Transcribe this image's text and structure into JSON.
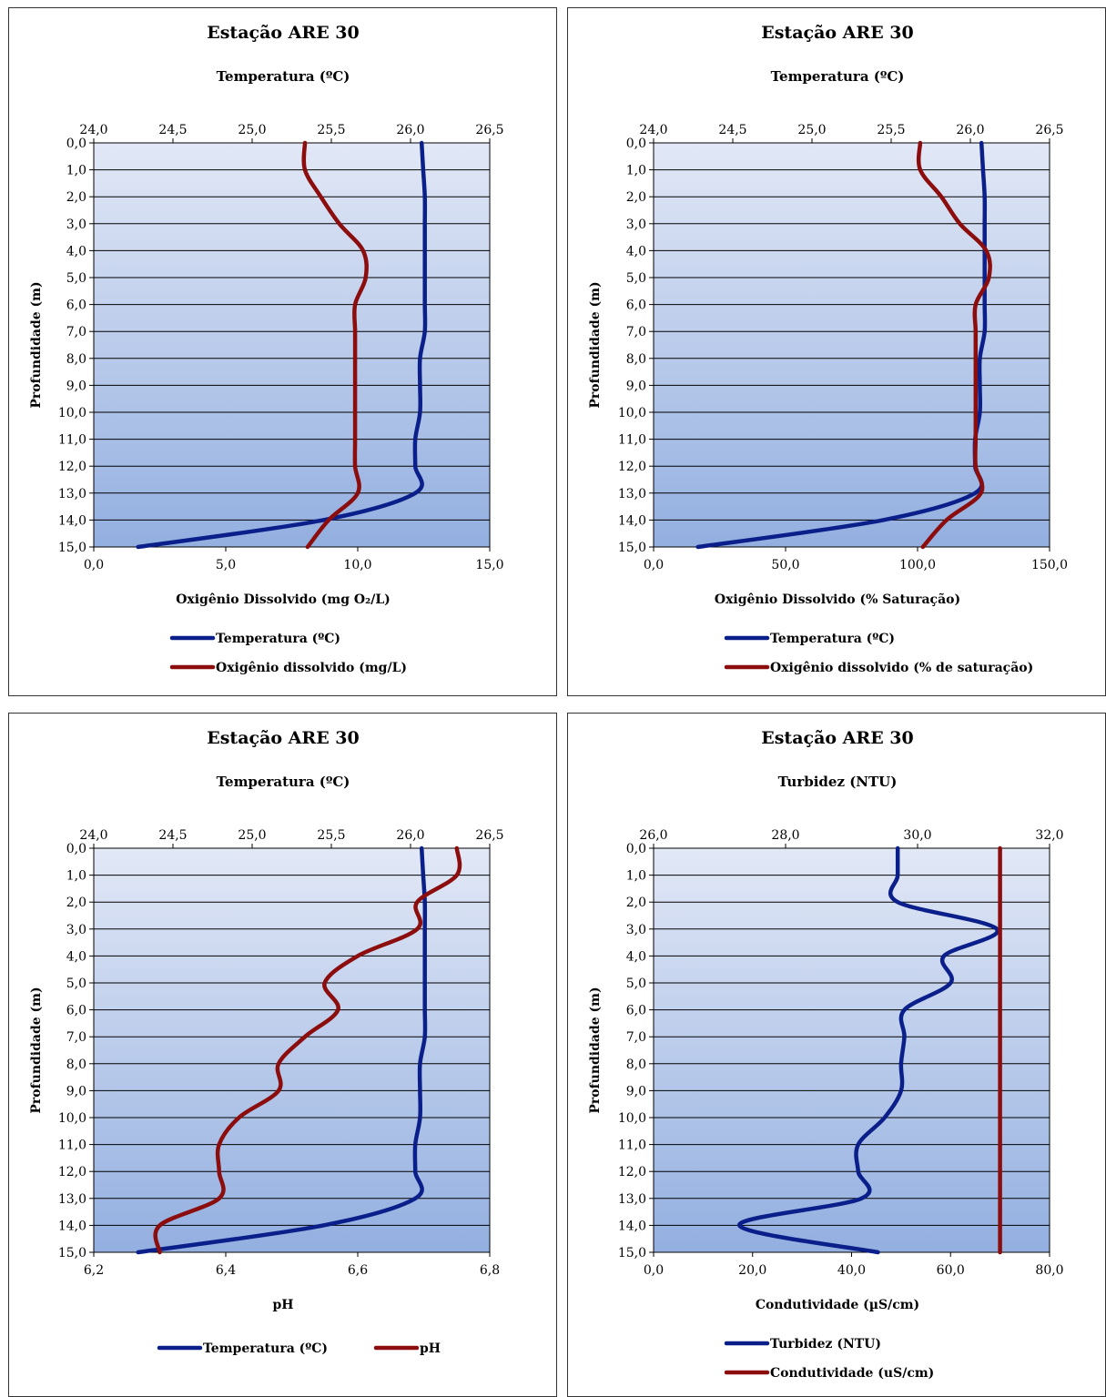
{
  "chart_data": [
    {
      "type": "line",
      "title": "Estação ARE 30",
      "top_axis_title": "Temperatura  (ºC)",
      "bottom_axis_title": "Oxigênio  Dissolvido  (mg O₂/L)",
      "ylabel": "Profundidade  (m)",
      "top_axis": {
        "ticks": [
          "24,0",
          "24,5",
          "25,0",
          "25,5",
          "26,0",
          "26,5"
        ],
        "min": 24.0,
        "max": 26.5
      },
      "bottom_axis": {
        "ticks": [
          "0,0",
          "5,0",
          "10,0",
          "15,0"
        ],
        "min": 0,
        "max": 15
      },
      "y_ticks": [
        "0,0",
        "1,0",
        "2,0",
        "3,0",
        "4,0",
        "5,0",
        "6,0",
        "7,0",
        "8,0",
        "9,0",
        "10,0",
        "11,0",
        "12,0",
        "13,0",
        "14,0",
        "15,0"
      ],
      "ylim": [
        0,
        15
      ],
      "legend_layout": "stacked",
      "series": [
        {
          "name": "Temperatura (ºC)",
          "axis": "top",
          "color": "#0b1f8a",
          "depths": [
            0,
            1,
            2,
            3,
            4,
            5,
            6,
            7,
            8,
            9,
            10,
            11,
            12,
            13,
            14,
            15
          ],
          "values": [
            26.07,
            26.08,
            26.09,
            26.09,
            26.09,
            26.09,
            26.09,
            26.09,
            26.06,
            26.06,
            26.06,
            26.03,
            26.03,
            26.03,
            25.45,
            24.28
          ]
        },
        {
          "name": "Oxigênio dissolvido (mg/L)",
          "axis": "bottom",
          "color": "#8b0d0d",
          "depths": [
            0,
            1,
            2,
            3,
            4,
            5,
            6,
            7,
            8,
            9,
            10,
            11,
            12,
            13,
            14,
            15
          ],
          "values": [
            8.0,
            8.0,
            8.6,
            9.3,
            10.2,
            10.3,
            9.9,
            9.9,
            9.9,
            9.9,
            9.9,
            9.9,
            9.9,
            10.0,
            8.9,
            8.1
          ]
        }
      ]
    },
    {
      "type": "line",
      "title": "Estação ARE 30",
      "top_axis_title": "Temperatura  (ºC)",
      "bottom_axis_title": "Oxigênio  Dissolvido  (% Saturação)",
      "ylabel": "Profundidade  (m)",
      "top_axis": {
        "ticks": [
          "24,0",
          "24,5",
          "25,0",
          "25,5",
          "26,0",
          "26,5"
        ],
        "min": 24.0,
        "max": 26.5
      },
      "bottom_axis": {
        "ticks": [
          "0,0",
          "50,0",
          "100,0",
          "150,0"
        ],
        "min": 0,
        "max": 150
      },
      "y_ticks": [
        "0,0",
        "1,0",
        "2,0",
        "3,0",
        "4,0",
        "5,0",
        "6,0",
        "7,0",
        "8,0",
        "9,0",
        "10,0",
        "11,0",
        "12,0",
        "13,0",
        "14,0",
        "15,0"
      ],
      "ylim": [
        0,
        15
      ],
      "legend_layout": "stacked",
      "series": [
        {
          "name": "Temperatura (ºC)",
          "axis": "top",
          "color": "#0b1f8a",
          "depths": [
            0,
            1,
            2,
            3,
            4,
            5,
            6,
            7,
            8,
            9,
            10,
            11,
            12,
            13,
            14,
            15
          ],
          "values": [
            26.07,
            26.08,
            26.09,
            26.09,
            26.09,
            26.09,
            26.09,
            26.09,
            26.06,
            26.06,
            26.06,
            26.03,
            26.03,
            26.03,
            25.45,
            24.28
          ]
        },
        {
          "name": "Oxigênio dissolvido (% de saturação)",
          "axis": "bottom",
          "color": "#8b0d0d",
          "depths": [
            0,
            1,
            2,
            3,
            4,
            5,
            6,
            7,
            8,
            9,
            10,
            11,
            12,
            13,
            14,
            15
          ],
          "values": [
            101,
            101,
            109,
            116,
            126,
            127,
            122,
            122,
            122,
            122,
            122,
            122,
            122,
            124,
            111,
            102
          ]
        }
      ]
    },
    {
      "type": "line",
      "title": "Estação ARE 30",
      "top_axis_title": "Temperatura  (ºC)",
      "bottom_axis_title": "pH",
      "ylabel": "Profundidade  (m)",
      "top_axis": {
        "ticks": [
          "24,0",
          "24,5",
          "25,0",
          "25,5",
          "26,0",
          "26,5"
        ],
        "min": 24.0,
        "max": 26.5
      },
      "bottom_axis": {
        "ticks": [
          "6,2",
          "6,4",
          "6,6",
          "6,8"
        ],
        "min": 6.2,
        "max": 6.8
      },
      "y_ticks": [
        "0,0",
        "1,0",
        "2,0",
        "3,0",
        "4,0",
        "5,0",
        "6,0",
        "7,0",
        "8,0",
        "9,0",
        "10,0",
        "11,0",
        "12,0",
        "13,0",
        "14,0",
        "15,0"
      ],
      "ylim": [
        0,
        15
      ],
      "legend_layout": "inline",
      "series": [
        {
          "name": "Temperatura (ºC)",
          "axis": "top",
          "color": "#0b1f8a",
          "depths": [
            0,
            1,
            2,
            3,
            4,
            5,
            6,
            7,
            8,
            9,
            10,
            11,
            12,
            13,
            14,
            15
          ],
          "values": [
            26.07,
            26.08,
            26.09,
            26.09,
            26.09,
            26.09,
            26.09,
            26.09,
            26.06,
            26.06,
            26.06,
            26.03,
            26.03,
            26.03,
            25.45,
            24.28
          ]
        },
        {
          "name": "pH",
          "axis": "bottom",
          "color": "#8b0d0d",
          "depths": [
            0,
            1,
            2,
            3,
            4,
            5,
            6,
            7,
            8,
            9,
            10,
            11,
            12,
            13,
            14,
            15
          ],
          "values": [
            6.75,
            6.75,
            6.69,
            6.69,
            6.6,
            6.55,
            6.57,
            6.52,
            6.48,
            6.48,
            6.42,
            6.39,
            6.39,
            6.39,
            6.3,
            6.3
          ]
        }
      ]
    },
    {
      "type": "line",
      "title": "Estação ARE 30",
      "top_axis_title": "Turbidez  (NTU)",
      "bottom_axis_title": "Condutividade  (µS/cm)",
      "ylabel": "Profundidade  (m)",
      "top_axis": {
        "ticks": [
          "26,0",
          "28,0",
          "30,0",
          "32,0"
        ],
        "min": 26.0,
        "max": 32.0
      },
      "bottom_axis": {
        "ticks": [
          "0,0",
          "20,0",
          "40,0",
          "60,0",
          "80,0"
        ],
        "min": 0,
        "max": 80
      },
      "y_ticks": [
        "0,0",
        "1,0",
        "2,0",
        "3,0",
        "4,0",
        "5,0",
        "6,0",
        "7,0",
        "8,0",
        "9,0",
        "10,0",
        "11,0",
        "12,0",
        "13,0",
        "14,0",
        "15,0"
      ],
      "ylim": [
        0,
        15
      ],
      "legend_layout": "stacked",
      "series": [
        {
          "name": "Turbidez (NTU)",
          "axis": "top",
          "color": "#0b1f8a",
          "depths": [
            0,
            1,
            2,
            3,
            4,
            5,
            6,
            7,
            8,
            9,
            10,
            11,
            12,
            13,
            14,
            15
          ],
          "values": [
            29.7,
            29.7,
            29.7,
            31.2,
            30.4,
            30.5,
            29.8,
            29.8,
            29.75,
            29.75,
            29.5,
            29.1,
            29.1,
            29.15,
            27.3,
            29.4
          ]
        },
        {
          "name": "Condutividade (uS/cm)",
          "axis": "bottom",
          "color": "#8b0d0d",
          "depths": [
            0,
            1,
            2,
            3,
            4,
            5,
            6,
            7,
            8,
            9,
            10,
            11,
            12,
            13,
            14,
            15
          ],
          "values": [
            70,
            70,
            70,
            70,
            70,
            70,
            70,
            70,
            70,
            70,
            70,
            70,
            70,
            70,
            70,
            70
          ]
        }
      ]
    }
  ]
}
